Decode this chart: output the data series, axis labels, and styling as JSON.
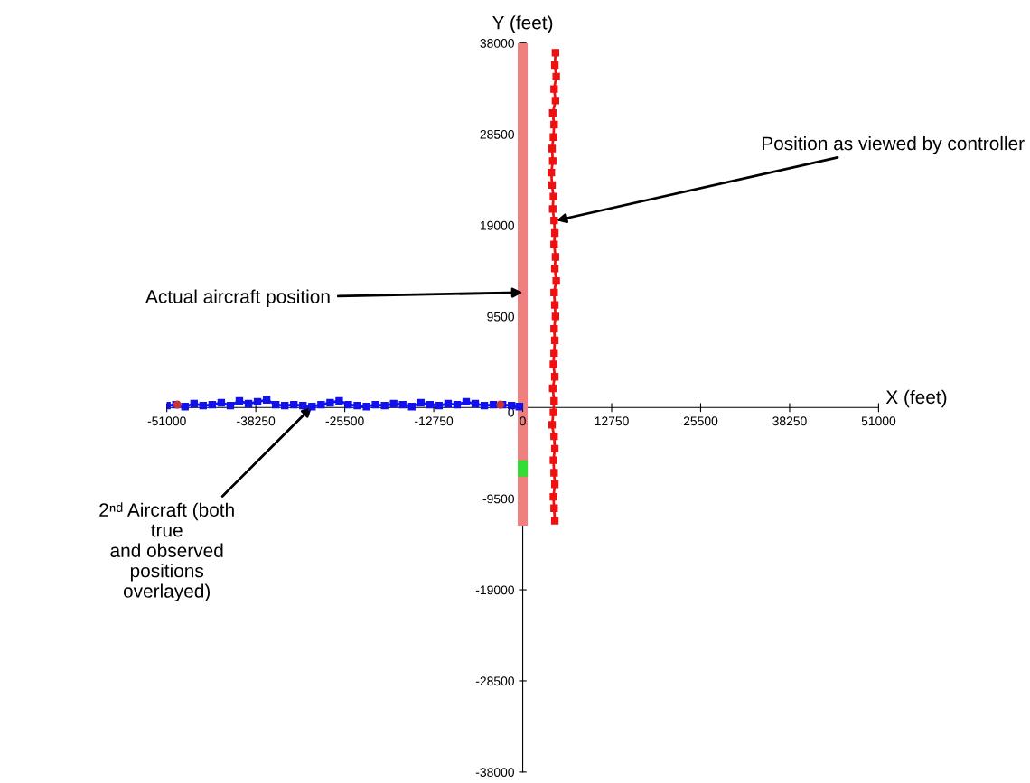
{
  "chart_data": {
    "type": "line",
    "xlabel": "X (feet)",
    "ylabel": "Y (feet)",
    "xlim": [
      -51000,
      51000
    ],
    "ylim": [
      -38000,
      38000
    ],
    "xticks": [
      -51000,
      -38250,
      -25500,
      -12750,
      0,
      12750,
      25500,
      38250,
      51000
    ],
    "yticks": [
      -38000,
      -28500,
      -19000,
      -9500,
      0,
      9500,
      19000,
      28500,
      38000
    ],
    "grid": false,
    "legend": false,
    "marker": "none",
    "line_style": "solid",
    "series": [
      {
        "color": "#f08080",
        "x": [
          0,
          0
        ],
        "values": [
          38000,
          -12300
        ]
      },
      {
        "color": "#33dd33",
        "x": [
          0,
          0
        ],
        "values": [
          -5500,
          -7200
        ]
      },
      {
        "color": "#ee1111",
        "marker": "square",
        "x": [
          4700,
          4600,
          4800,
          4500,
          4700,
          4300,
          4500,
          4400,
          4200,
          4300,
          4100,
          4200,
          4400,
          4300,
          4500,
          4600,
          4500,
          4700,
          4600,
          4800,
          4500,
          4600,
          4700,
          4500,
          4600,
          4500,
          4400,
          4600,
          4300,
          4500,
          4400,
          4200,
          4500,
          4600,
          4400,
          4500,
          4600,
          4400,
          4500,
          4600
        ],
        "values": [
          37000,
          35700,
          34500,
          33200,
          32000,
          30700,
          29500,
          28200,
          27000,
          25700,
          24500,
          23200,
          22000,
          20700,
          19500,
          18200,
          17000,
          15700,
          14500,
          13200,
          12000,
          10700,
          9500,
          8200,
          7000,
          5700,
          4500,
          3200,
          2000,
          700,
          -500,
          -1800,
          -3000,
          -4300,
          -5500,
          -6800,
          -8000,
          -9300,
          -10500,
          -11800
        ]
      },
      {
        "color": "#1111ee",
        "marker": "square",
        "x": [
          -51000,
          -49700,
          -48400,
          -47100,
          -45800,
          -44500,
          -43200,
          -41900,
          -40600,
          -39300,
          -38000,
          -36700,
          -35400,
          -34100,
          -32800,
          -31500,
          -30200,
          -28900,
          -27600,
          -26300,
          -25000,
          -23700,
          -22400,
          -21100,
          -19800,
          -18500,
          -17200,
          -15900,
          -14600,
          -13300,
          -12000,
          -10700,
          -9400,
          -8100,
          -6800,
          -5500,
          -4200,
          -2900,
          -1600,
          -500
        ],
        "values": [
          200,
          300,
          100,
          400,
          200,
          300,
          500,
          200,
          700,
          400,
          600,
          800,
          300,
          200,
          300,
          200,
          100,
          300,
          500,
          700,
          300,
          200,
          100,
          300,
          200,
          400,
          300,
          100,
          500,
          300,
          200,
          400,
          300,
          600,
          400,
          200,
          300,
          300,
          200,
          100
        ]
      },
      {
        "type": "scatter",
        "color": "#cc3333",
        "marker": "circle",
        "x": [
          -49500,
          -3200
        ],
        "values": [
          300,
          300
        ]
      }
    ],
    "annotations": [
      {
        "text": "Position as viewed by controller",
        "x": 4800,
        "y": 19500
      },
      {
        "text": "Actual aircraft position",
        "x": 0,
        "y": 12000
      },
      {
        "text": "2ⁿᵈ Aircraft (both\ntrue\nand observed\npositions\noverlayed)",
        "x": -30200,
        "y": 100
      }
    ]
  }
}
